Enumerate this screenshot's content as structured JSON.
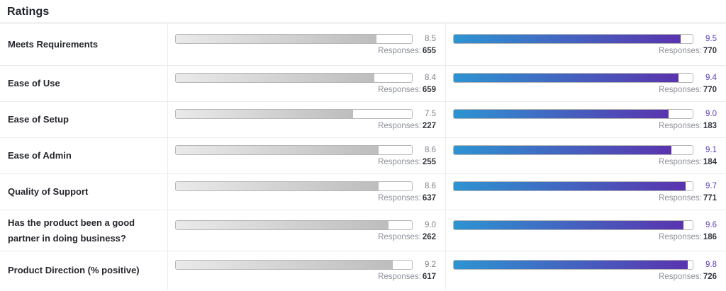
{
  "header": {
    "title": "Ratings"
  },
  "responses_label": "Responses:",
  "scale_max": 10,
  "rows": [
    {
      "label": "Meets Requirements",
      "left": {
        "value": "8.5",
        "responses": "655"
      },
      "right": {
        "value": "9.5",
        "responses": "770"
      }
    },
    {
      "label": "Ease of Use",
      "left": {
        "value": "8.4",
        "responses": "659"
      },
      "right": {
        "value": "9.4",
        "responses": "770"
      }
    },
    {
      "label": "Ease of Setup",
      "left": {
        "value": "7.5",
        "responses": "227"
      },
      "right": {
        "value": "9.0",
        "responses": "183"
      }
    },
    {
      "label": "Ease of Admin",
      "left": {
        "value": "8.6",
        "responses": "255"
      },
      "right": {
        "value": "9.1",
        "responses": "184"
      }
    },
    {
      "label": "Quality of Support",
      "left": {
        "value": "8.6",
        "responses": "637"
      },
      "right": {
        "value": "9.7",
        "responses": "771"
      }
    },
    {
      "label": "Has the product been a good partner in doing business?",
      "left": {
        "value": "9.0",
        "responses": "262"
      },
      "right": {
        "value": "9.6",
        "responses": "186"
      }
    },
    {
      "label": "Product Direction (% positive)",
      "left": {
        "value": "9.2",
        "responses": "617"
      },
      "right": {
        "value": "9.8",
        "responses": "726"
      }
    }
  ],
  "colors": {
    "left_bar_gradient_start": "#eaeaea",
    "left_bar_gradient_end": "#bdbdbd",
    "right_bar_gradient_start": "#2d94d2",
    "right_bar_gradient_end": "#5a33ae",
    "left_value_text": "#7d818c",
    "right_value_text": "#5c3db6"
  },
  "chart_data": {
    "type": "bar",
    "orientation": "horizontal",
    "title": "Ratings",
    "categories": [
      "Meets Requirements",
      "Ease of Use",
      "Ease of Setup",
      "Ease of Admin",
      "Quality of Support",
      "Has the product been a good partner in doing business?",
      "Product Direction (% positive)"
    ],
    "series": [
      {
        "name": "left",
        "values": [
          8.5,
          8.4,
          7.5,
          8.6,
          8.6,
          9.0,
          9.2
        ],
        "responses": [
          655,
          659,
          227,
          255,
          637,
          262,
          617
        ],
        "color": "gray-gradient"
      },
      {
        "name": "right",
        "values": [
          9.5,
          9.4,
          9.0,
          9.1,
          9.7,
          9.6,
          9.8
        ],
        "responses": [
          770,
          770,
          183,
          184,
          771,
          186,
          726
        ],
        "color": "blue-purple-gradient"
      }
    ],
    "xlim": [
      0,
      10
    ],
    "grid": false,
    "legend": false
  }
}
